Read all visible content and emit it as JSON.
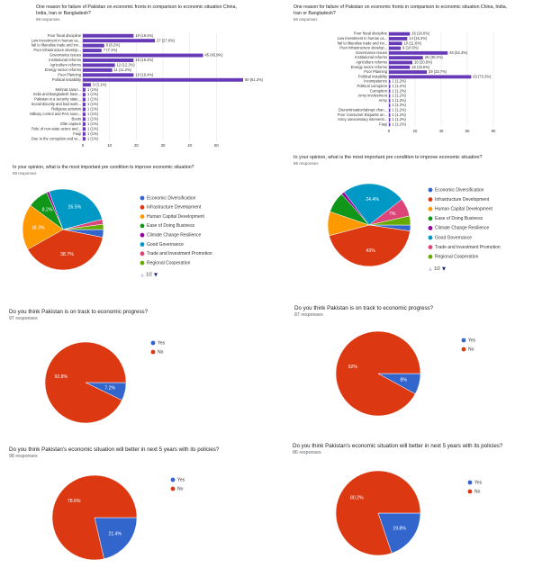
{
  "chart_data": [
    {
      "type": "bar",
      "orientation": "horizontal",
      "title": "One reason for failure of Pakistan on economic fronts in comparison to economic situation China, India, Iran or Bangladesh?",
      "subtitle": "98 responses",
      "color": "#673ab7",
      "categories": [
        "Poor fiscal discipline",
        "Low investment in human ca...",
        "fail to liberalise trade and inv...",
        "Poor infrastructure develop...",
        "Governance issues",
        "Institutional reforms",
        "Agriculture reforms",
        "Energy sector reforms",
        "Poor Planning",
        "Political instability",
        null,
        "Mehnat zaruri...",
        "India and Bangladesh have...",
        "Pakistan is a security state...",
        "Social disunity and bad work...",
        "Religious activism",
        "Military control and PAS sooo...",
        "Boots",
        "Elite capture",
        "Role of non-state actors and...",
        "Fauji",
        "Due to the corruption and ve..."
      ],
      "values": [
        19,
        27,
        8,
        7,
        45,
        19,
        12,
        11,
        19,
        60,
        3,
        1,
        1,
        1,
        1,
        1,
        1,
        1,
        1,
        1,
        1,
        1
      ],
      "value_labels": [
        "19 (19.4%)",
        "27 (27.6%)",
        "8 (8.2%)",
        "7 (7.1%)",
        "45 (45.9%)",
        "19 (19.4%)",
        "12 (12.2%)",
        "11 (11.2%)",
        "19 (19.4%)",
        "60 (61.2%)",
        "3 (3.1%)",
        "1 (1%)",
        "1 (1%)",
        "1 (1%)",
        "1 (1%)",
        "1 (1%)",
        "1 (1%)",
        "1 (1%)",
        "1 (1%)",
        "1 (1%)",
        "1 (1%)",
        "1 (1%)"
      ],
      "xlim": [
        0,
        60
      ],
      "xticks": [
        0,
        10,
        20,
        30,
        40,
        50
      ],
      "grid": true
    },
    {
      "type": "bar",
      "orientation": "horizontal",
      "title": "One reason for failure of Pakistan on economic fronts in comparison to economic situation China, India, Iran or Bangladesh?",
      "subtitle": "86 responses",
      "color": "#673ab7",
      "categories": [
        "Poor fiscal discipline",
        "Low investment in human ca...",
        "fail to liberalise trade and inv...",
        "Poor infrastructure develop...",
        "Governance issues",
        "Institutional reforms",
        "Agriculture reforms",
        "Energy sector reforms",
        "Poor Planning",
        "Political instability",
        "Incompetence",
        "Political corruption",
        "Corruption",
        "Army involvement",
        "Army",
        null,
        "Discontinuation/abrupt chan...",
        "Poor Consumer Etiquette an...",
        "Army unnecessary interventi...",
        "Fauji"
      ],
      "values": [
        16,
        14,
        10,
        9,
        45,
        26,
        18,
        16,
        29,
        63,
        1,
        1,
        1,
        1,
        1,
        1,
        1,
        1,
        1,
        1
      ],
      "value_labels": [
        "16 (18.6%)",
        "14 (16.3%)",
        "10 (11.6%)",
        "9 (10.5%)",
        "45 (52.3%)",
        "26 (30.2%)",
        "18 (20.9%)",
        "16 (18.6%)",
        "29 (33.7%)",
        "63 (73.3%)",
        "1 (1.2%)",
        "1 (1.2%)",
        "1 (1.2%)",
        "1 (1.2%)",
        "1 (1.2%)",
        "1 (1.2%)",
        "1 (1.2%)",
        "1 (1.2%)",
        "1 (1.2%)",
        "1 (1.2%)"
      ],
      "xlim": [
        0,
        80
      ],
      "xticks": [
        0,
        20,
        40,
        60,
        80
      ],
      "grid": true
    },
    {
      "type": "pie",
      "title": "In your opinion, what is the most important pre condition to improve economic situation?",
      "subtitle": "98 responses",
      "categories": [
        "Economic Diversification",
        "Infrastructure Development",
        "Human Capital Development",
        "Ease of Doing Business",
        "Climate Change Resilience",
        "Good Governance",
        "Trade and Investment Promotion",
        "Regional Cooperation"
      ],
      "values": [
        3.1,
        38.7,
        18.3,
        8.2,
        1,
        26.5,
        2,
        2.1
      ],
      "value_labels": [
        null,
        "38.7%",
        "18.3%",
        "8.2%",
        null,
        "26.5%",
        null,
        null
      ],
      "colors": [
        "#3366cc",
        "#dc3912",
        "#ff9900",
        "#109618",
        "#990099",
        "#0099c6",
        "#dd4477",
        "#66aa00"
      ],
      "legend_pager": "1/2"
    },
    {
      "type": "pie",
      "title": "In your opinion, what is the most important pre condition to improve economic situation?",
      "subtitle": "86 responses",
      "categories": [
        "Economic Diversification",
        "Infrastructure Development",
        "Human Capital Development",
        "Ease of Doing Business",
        "Climate Change Resilience",
        "Good Governance",
        "Trade and Investment Promotion",
        "Regional Cooperation"
      ],
      "values": [
        2.3,
        43,
        9.3,
        8.1,
        1.2,
        24.4,
        7,
        3.5
      ],
      "value_labels": [
        null,
        "43%",
        null,
        null,
        null,
        "24.4%",
        "7%",
        null
      ],
      "colors": [
        "#3366cc",
        "#dc3912",
        "#ff9900",
        "#109618",
        "#990099",
        "#0099c6",
        "#dd4477",
        "#66aa00"
      ],
      "legend_pager": "1/2"
    },
    {
      "type": "pie",
      "title": "Do you think Pakistan is on track to economic progress?",
      "subtitle": "97 responses",
      "categories": [
        "Yes",
        "No"
      ],
      "values": [
        7.2,
        92.8
      ],
      "value_labels": [
        "7.2%",
        "92.8%"
      ],
      "colors": [
        "#3366cc",
        "#dc3912"
      ]
    },
    {
      "type": "pie",
      "title": "Do you think Pakistan is on track to economic progress?",
      "subtitle": "87 responses",
      "categories": [
        "Yes",
        "No"
      ],
      "values": [
        8,
        92
      ],
      "value_labels": [
        "8%",
        "92%"
      ],
      "colors": [
        "#3366cc",
        "#dc3912"
      ]
    },
    {
      "type": "pie",
      "title": "Do you think Pakistan's economic situation will better in next 5 years with its policies?",
      "subtitle": "98 responses",
      "categories": [
        "Yes",
        "No"
      ],
      "values": [
        21.4,
        78.6
      ],
      "value_labels": [
        "21.4%",
        "78.6%"
      ],
      "colors": [
        "#3366cc",
        "#dc3912"
      ]
    },
    {
      "type": "pie",
      "title": "Do you think Pakistan's economic situation will better in next 5 years with its policies?",
      "subtitle": "86 responses",
      "categories": [
        "Yes",
        "No"
      ],
      "values": [
        19.8,
        80.2
      ],
      "value_labels": [
        "19.8%",
        "80.2%"
      ],
      "colors": [
        "#3366cc",
        "#dc3912"
      ]
    }
  ]
}
